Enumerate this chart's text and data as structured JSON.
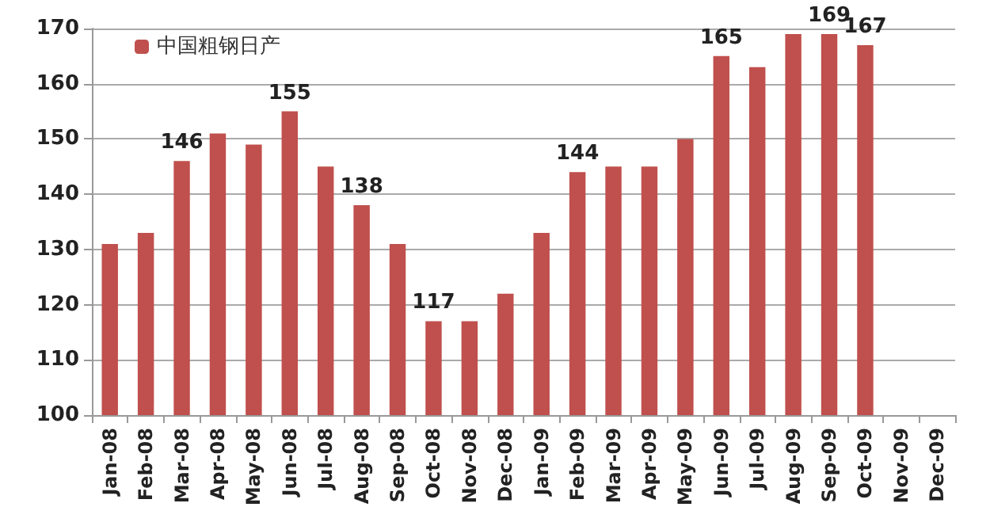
{
  "chart_data": {
    "type": "bar",
    "categories": [
      "Jan-08",
      "Feb-08",
      "Mar-08",
      "Apr-08",
      "May-08",
      "Jun-08",
      "Jul-08",
      "Aug-08",
      "Sep-08",
      "Oct-08",
      "Nov-08",
      "Dec-08",
      "Jan-09",
      "Feb-09",
      "Mar-09",
      "Apr-09",
      "May-09",
      "Jun-09",
      "Jul-09",
      "Aug-09",
      "Sep-09",
      "Oct-09",
      "Nov-09",
      "Dec-09"
    ],
    "series": [
      {
        "name": "中国粗钢日产",
        "color": "#c0504d",
        "values": [
          131,
          133,
          146,
          151,
          149,
          155,
          145,
          138,
          131,
          117,
          117,
          122,
          133,
          144,
          145,
          145,
          150,
          165,
          163,
          169,
          169,
          167,
          null,
          null
        ],
        "value_labels": [
          null,
          null,
          "146",
          null,
          null,
          "155",
          null,
          "138",
          null,
          "117",
          null,
          null,
          null,
          "144",
          null,
          null,
          null,
          "165",
          null,
          null,
          "169",
          "167",
          null,
          null
        ]
      }
    ],
    "ylim": [
      100,
      170
    ],
    "yticks": [
      100,
      110,
      120,
      130,
      140,
      150,
      160,
      170
    ],
    "grid": "y",
    "legend": "top left"
  }
}
